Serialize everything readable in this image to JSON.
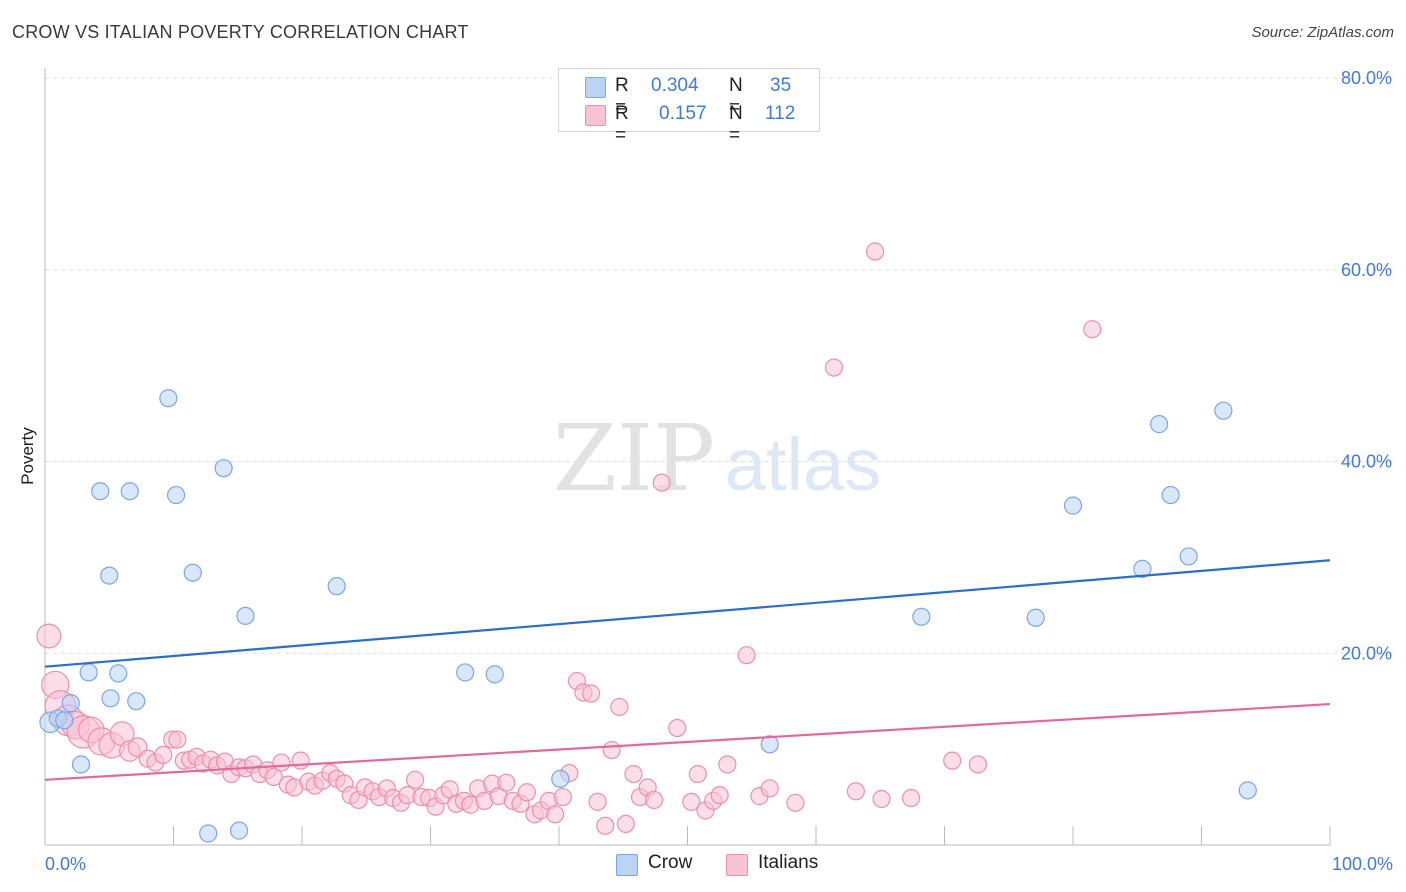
{
  "title": "CROW VS ITALIAN POVERTY CORRELATION CHART",
  "source": "Source: ZipAtlas.com",
  "watermark": {
    "zip": "ZIP",
    "atlas": "atlas"
  },
  "legend": {
    "rows": [
      {
        "r_label": "R =",
        "r_value": "0.304",
        "n_label": "N =",
        "n_value": "35"
      },
      {
        "r_label": "R =",
        "r_value": "0.157",
        "n_label": "N =",
        "n_value": "112"
      }
    ]
  },
  "bottom_legend": [
    {
      "label": "Crow"
    },
    {
      "label": "Italians"
    }
  ],
  "colors": {
    "crow_fill": "#b9d4f5",
    "crow_stroke": "#7aa7e6",
    "crow_line": "#2b6cd0",
    "italian_fill": "#f8c3d3",
    "italian_stroke": "#ec8fad",
    "italian_line": "#e2699a",
    "tick": "#3f7bd9",
    "grid": "#dddddd"
  },
  "chart_data": {
    "type": "scatter",
    "title": "CROW VS ITALIAN POVERTY CORRELATION CHART",
    "xlabel": "",
    "ylabel": "Poverty",
    "xlim": [
      0,
      100
    ],
    "ylim": [
      0,
      80
    ],
    "x_tick_labels": [
      "0.0%",
      "100.0%"
    ],
    "y_ticks": [
      20,
      40,
      60,
      80
    ],
    "y_tick_labels": [
      "20.0%",
      "40.0%",
      "60.0%",
      "80.0%"
    ],
    "series": [
      {
        "name": "Crow",
        "r": 0.304,
        "n": 35,
        "trend": {
          "x": [
            0,
            100
          ],
          "y": [
            18.6,
            29.7
          ]
        },
        "points": [
          {
            "x": 0.4,
            "y": 12.8,
            "s": 1.2
          },
          {
            "x": 1.0,
            "y": 13.2,
            "s": 1.0
          },
          {
            "x": 1.5,
            "y": 13.0,
            "s": 1.0
          },
          {
            "x": 2.0,
            "y": 14.8,
            "s": 1.0
          },
          {
            "x": 2.8,
            "y": 8.4,
            "s": 1.0
          },
          {
            "x": 3.4,
            "y": 18.0,
            "s": 1.0
          },
          {
            "x": 4.3,
            "y": 36.9,
            "s": 1.0
          },
          {
            "x": 5.0,
            "y": 28.1,
            "s": 1.0
          },
          {
            "x": 5.1,
            "y": 15.3,
            "s": 1.0
          },
          {
            "x": 5.7,
            "y": 17.9,
            "s": 1.0
          },
          {
            "x": 6.6,
            "y": 36.9,
            "s": 1.0
          },
          {
            "x": 7.1,
            "y": 15.0,
            "s": 1.0
          },
          {
            "x": 9.6,
            "y": 46.6,
            "s": 1.0
          },
          {
            "x": 10.2,
            "y": 36.5,
            "s": 1.0
          },
          {
            "x": 11.5,
            "y": 28.4,
            "s": 1.0
          },
          {
            "x": 12.7,
            "y": 1.2,
            "s": 1.0
          },
          {
            "x": 13.9,
            "y": 39.3,
            "s": 1.0
          },
          {
            "x": 15.1,
            "y": 1.5,
            "s": 1.0
          },
          {
            "x": 15.6,
            "y": 23.9,
            "s": 1.0
          },
          {
            "x": 22.7,
            "y": 27.0,
            "s": 1.0
          },
          {
            "x": 32.7,
            "y": 18.0,
            "s": 1.0
          },
          {
            "x": 35.0,
            "y": 17.8,
            "s": 1.0
          },
          {
            "x": 40.1,
            "y": 6.9,
            "s": 1.0
          },
          {
            "x": 56.4,
            "y": 10.5,
            "s": 1.0
          },
          {
            "x": 68.2,
            "y": 23.8,
            "s": 1.0
          },
          {
            "x": 77.1,
            "y": 23.7,
            "s": 1.0
          },
          {
            "x": 80.0,
            "y": 35.4,
            "s": 1.0
          },
          {
            "x": 85.4,
            "y": 28.8,
            "s": 1.0
          },
          {
            "x": 86.7,
            "y": 43.9,
            "s": 1.0
          },
          {
            "x": 87.6,
            "y": 36.5,
            "s": 1.0
          },
          {
            "x": 89.0,
            "y": 30.1,
            "s": 1.0
          },
          {
            "x": 91.7,
            "y": 45.3,
            "s": 1.0
          },
          {
            "x": 93.6,
            "y": 5.7,
            "s": 1.0
          }
        ]
      },
      {
        "name": "Italians",
        "r": 0.157,
        "n": 112,
        "trend": {
          "x": [
            0,
            100
          ],
          "y": [
            6.8,
            14.7
          ]
        },
        "points": [
          {
            "x": 0.3,
            "y": 21.8,
            "s": 1.4
          },
          {
            "x": 0.8,
            "y": 16.7,
            "s": 1.6
          },
          {
            "x": 1.2,
            "y": 14.5,
            "s": 1.8
          },
          {
            "x": 1.8,
            "y": 13.0,
            "s": 1.8
          },
          {
            "x": 2.4,
            "y": 12.5,
            "s": 1.6
          },
          {
            "x": 3.0,
            "y": 11.8,
            "s": 1.9
          },
          {
            "x": 3.6,
            "y": 12.0,
            "s": 1.5
          },
          {
            "x": 4.4,
            "y": 10.8,
            "s": 1.6
          },
          {
            "x": 5.2,
            "y": 10.4,
            "s": 1.5
          },
          {
            "x": 6.0,
            "y": 11.6,
            "s": 1.4
          },
          {
            "x": 6.6,
            "y": 9.8,
            "s": 1.2
          },
          {
            "x": 7.2,
            "y": 10.2,
            "s": 1.1
          },
          {
            "x": 8.0,
            "y": 9.0,
            "s": 1.0
          },
          {
            "x": 8.6,
            "y": 8.6,
            "s": 1.0
          },
          {
            "x": 9.2,
            "y": 9.4,
            "s": 1.0
          },
          {
            "x": 9.9,
            "y": 11.0,
            "s": 1.0
          },
          {
            "x": 10.3,
            "y": 11.0,
            "s": 1.0
          },
          {
            "x": 10.8,
            "y": 8.8,
            "s": 1.0
          },
          {
            "x": 11.3,
            "y": 8.9,
            "s": 1.0
          },
          {
            "x": 11.8,
            "y": 9.2,
            "s": 1.0
          },
          {
            "x": 12.3,
            "y": 8.5,
            "s": 1.0
          },
          {
            "x": 12.9,
            "y": 8.9,
            "s": 1.0
          },
          {
            "x": 13.4,
            "y": 8.3,
            "s": 1.0
          },
          {
            "x": 14.0,
            "y": 8.7,
            "s": 1.0
          },
          {
            "x": 14.5,
            "y": 7.4,
            "s": 1.0
          },
          {
            "x": 15.1,
            "y": 8.1,
            "s": 1.0
          },
          {
            "x": 15.6,
            "y": 8.0,
            "s": 1.0
          },
          {
            "x": 16.2,
            "y": 8.4,
            "s": 1.0
          },
          {
            "x": 16.7,
            "y": 7.4,
            "s": 1.0
          },
          {
            "x": 17.3,
            "y": 7.8,
            "s": 1.0
          },
          {
            "x": 17.8,
            "y": 7.1,
            "s": 1.0
          },
          {
            "x": 18.4,
            "y": 8.6,
            "s": 1.0
          },
          {
            "x": 18.9,
            "y": 6.3,
            "s": 1.0
          },
          {
            "x": 19.4,
            "y": 6.0,
            "s": 1.0
          },
          {
            "x": 19.9,
            "y": 8.8,
            "s": 1.0
          },
          {
            "x": 20.5,
            "y": 6.6,
            "s": 1.0
          },
          {
            "x": 21.0,
            "y": 6.2,
            "s": 1.0
          },
          {
            "x": 21.6,
            "y": 6.7,
            "s": 1.0
          },
          {
            "x": 22.2,
            "y": 7.5,
            "s": 1.0
          },
          {
            "x": 22.7,
            "y": 6.9,
            "s": 1.0
          },
          {
            "x": 23.3,
            "y": 6.4,
            "s": 1.0
          },
          {
            "x": 23.8,
            "y": 5.2,
            "s": 1.0
          },
          {
            "x": 24.4,
            "y": 4.7,
            "s": 1.0
          },
          {
            "x": 24.9,
            "y": 6.0,
            "s": 1.0
          },
          {
            "x": 25.5,
            "y": 5.6,
            "s": 1.0
          },
          {
            "x": 26.0,
            "y": 5.0,
            "s": 1.0
          },
          {
            "x": 26.6,
            "y": 5.9,
            "s": 1.0
          },
          {
            "x": 27.1,
            "y": 4.9,
            "s": 1.0
          },
          {
            "x": 27.7,
            "y": 4.4,
            "s": 1.0
          },
          {
            "x": 28.2,
            "y": 5.2,
            "s": 1.0
          },
          {
            "x": 28.8,
            "y": 6.8,
            "s": 1.0
          },
          {
            "x": 29.3,
            "y": 5.0,
            "s": 1.0
          },
          {
            "x": 29.9,
            "y": 4.9,
            "s": 1.0
          },
          {
            "x": 30.4,
            "y": 4.0,
            "s": 1.0
          },
          {
            "x": 31.0,
            "y": 5.2,
            "s": 1.0
          },
          {
            "x": 31.5,
            "y": 5.8,
            "s": 1.0
          },
          {
            "x": 32.0,
            "y": 4.3,
            "s": 1.0
          },
          {
            "x": 32.6,
            "y": 4.6,
            "s": 1.0
          },
          {
            "x": 33.1,
            "y": 4.2,
            "s": 1.0
          },
          {
            "x": 33.7,
            "y": 5.9,
            "s": 1.0
          },
          {
            "x": 34.2,
            "y": 4.6,
            "s": 1.0
          },
          {
            "x": 34.8,
            "y": 6.4,
            "s": 1.0
          },
          {
            "x": 35.3,
            "y": 5.1,
            "s": 1.0
          },
          {
            "x": 35.9,
            "y": 6.5,
            "s": 1.0
          },
          {
            "x": 36.4,
            "y": 4.6,
            "s": 1.0
          },
          {
            "x": 37.0,
            "y": 4.3,
            "s": 1.0
          },
          {
            "x": 37.5,
            "y": 5.5,
            "s": 1.0
          },
          {
            "x": 38.1,
            "y": 3.2,
            "s": 1.0
          },
          {
            "x": 38.6,
            "y": 3.6,
            "s": 1.0
          },
          {
            "x": 39.2,
            "y": 4.6,
            "s": 1.0
          },
          {
            "x": 39.7,
            "y": 3.2,
            "s": 1.0
          },
          {
            "x": 40.3,
            "y": 5.0,
            "s": 1.0
          },
          {
            "x": 40.8,
            "y": 7.5,
            "s": 1.0
          },
          {
            "x": 41.4,
            "y": 17.1,
            "s": 1.0
          },
          {
            "x": 41.9,
            "y": 15.9,
            "s": 1.0
          },
          {
            "x": 42.5,
            "y": 15.8,
            "s": 1.0
          },
          {
            "x": 43.0,
            "y": 4.5,
            "s": 1.0
          },
          {
            "x": 43.6,
            "y": 2.0,
            "s": 1.0
          },
          {
            "x": 44.1,
            "y": 9.9,
            "s": 1.0
          },
          {
            "x": 44.7,
            "y": 14.4,
            "s": 1.0
          },
          {
            "x": 45.2,
            "y": 2.2,
            "s": 1.0
          },
          {
            "x": 45.8,
            "y": 7.4,
            "s": 1.0
          },
          {
            "x": 46.3,
            "y": 5.0,
            "s": 1.0
          },
          {
            "x": 46.9,
            "y": 6.0,
            "s": 1.0
          },
          {
            "x": 47.4,
            "y": 4.7,
            "s": 1.0
          },
          {
            "x": 48.0,
            "y": 37.8,
            "s": 1.0
          },
          {
            "x": 49.2,
            "y": 12.2,
            "s": 1.0
          },
          {
            "x": 50.3,
            "y": 4.5,
            "s": 1.0
          },
          {
            "x": 50.8,
            "y": 7.4,
            "s": 1.0
          },
          {
            "x": 51.4,
            "y": 3.6,
            "s": 1.0
          },
          {
            "x": 52.0,
            "y": 4.6,
            "s": 1.0
          },
          {
            "x": 52.5,
            "y": 5.2,
            "s": 1.0
          },
          {
            "x": 53.1,
            "y": 8.4,
            "s": 1.0
          },
          {
            "x": 54.6,
            "y": 19.8,
            "s": 1.0
          },
          {
            "x": 55.6,
            "y": 5.1,
            "s": 1.0
          },
          {
            "x": 56.4,
            "y": 5.9,
            "s": 1.0
          },
          {
            "x": 58.4,
            "y": 4.4,
            "s": 1.0
          },
          {
            "x": 61.4,
            "y": 49.8,
            "s": 1.0
          },
          {
            "x": 64.6,
            "y": 61.9,
            "s": 1.0
          },
          {
            "x": 67.4,
            "y": 4.9,
            "s": 1.0
          },
          {
            "x": 70.6,
            "y": 8.8,
            "s": 1.0
          },
          {
            "x": 72.6,
            "y": 8.4,
            "s": 1.0
          },
          {
            "x": 81.5,
            "y": 53.8,
            "s": 1.0
          },
          {
            "x": 63.1,
            "y": 5.6,
            "s": 1.0
          },
          {
            "x": 65.1,
            "y": 4.8,
            "s": 1.0
          }
        ]
      }
    ]
  }
}
